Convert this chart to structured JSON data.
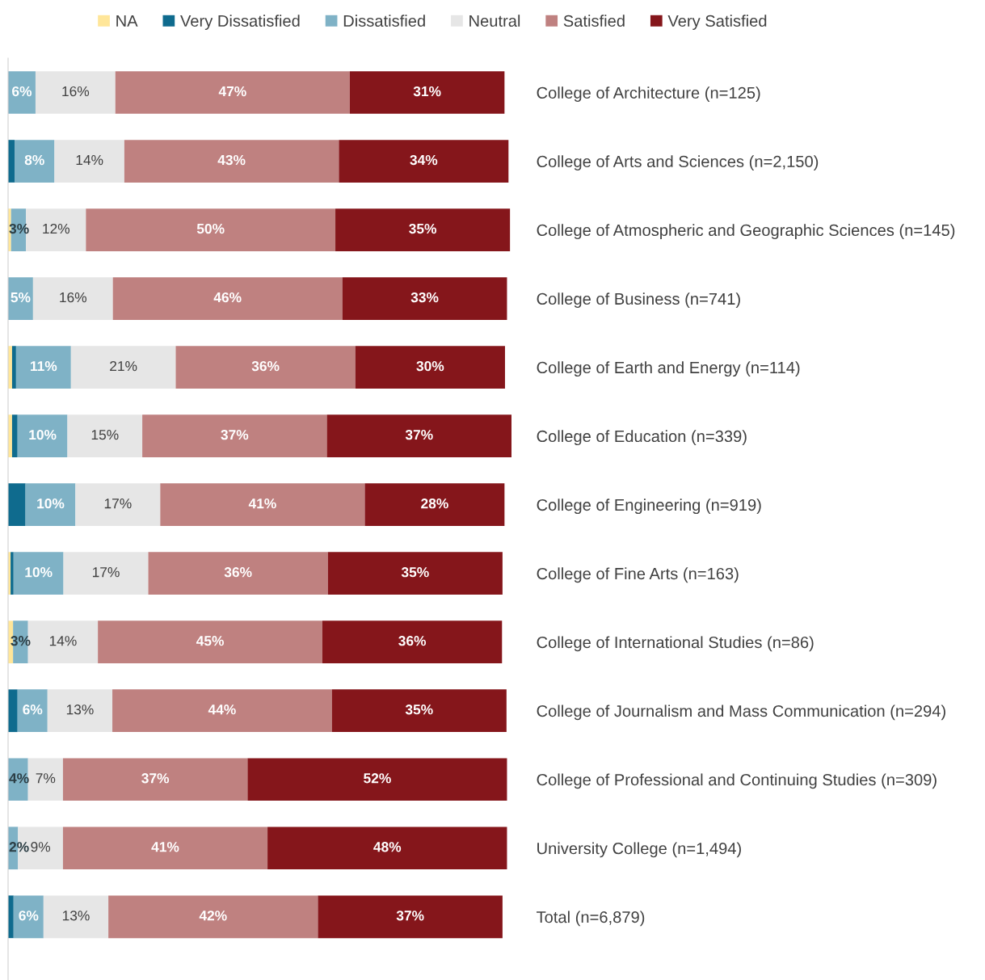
{
  "chart_data": {
    "type": "bar",
    "orientation": "horizontal",
    "stacked": true,
    "legend": "top",
    "grid": false,
    "categories": [
      "College of Architecture (n=125)",
      "College of Arts and Sciences (n=2,150)",
      "College of Atmospheric and Geographic Sciences (n=145)",
      "College of Business (n=741)",
      "College of Earth and Energy (n=114)",
      "College of Education (n=339)",
      "College of Engineering (n=919)",
      "College of Fine Arts (n=163)",
      "College of International Studies (n=86)",
      "College of Journalism and Mass Communication (n=294)",
      "College of Professional and Continuing Studies (n=309)",
      "University College (n=1,494)",
      "Total (n=6,879)"
    ],
    "series": [
      {
        "name": "NA",
        "color": "#ffe699",
        "values": [
          0,
          0,
          0.6,
          0,
          0.8,
          0.8,
          0,
          0.5,
          1,
          0,
          0,
          0,
          0
        ],
        "value_labels": [
          null,
          null,
          null,
          null,
          null,
          null,
          null,
          null,
          null,
          null,
          null,
          null,
          null
        ]
      },
      {
        "name": "Very Dissatisfied",
        "color": "#0f6b8e",
        "values": [
          0,
          1.3,
          0,
          0,
          0.8,
          1.1,
          3.5,
          0.6,
          0,
          1.9,
          0,
          0,
          1.1
        ],
        "value_labels": [
          null,
          null,
          null,
          null,
          null,
          null,
          null,
          null,
          null,
          null,
          null,
          null,
          null
        ]
      },
      {
        "name": "Dissatisfied",
        "color": "#7fb2c6",
        "values": [
          5.5,
          8,
          3,
          5,
          11,
          10,
          10,
          10,
          3,
          6,
          4,
          2,
          6
        ],
        "value_labels": [
          "6%",
          "8%",
          "3%",
          "5%",
          "11%",
          "10%",
          "10%",
          "10%",
          "3%",
          "6%",
          "4%",
          "2%",
          "6%"
        ]
      },
      {
        "name": "Neutral",
        "color": "#e6e6e6",
        "values": [
          16,
          14,
          12,
          16,
          21,
          15,
          17,
          17,
          14,
          13,
          7,
          9,
          13
        ],
        "value_labels": [
          "16%",
          "14%",
          "12%",
          "16%",
          "21%",
          "15%",
          "17%",
          "17%",
          "14%",
          "13%",
          "7%",
          "9%",
          "13%"
        ]
      },
      {
        "name": "Satisfied",
        "color": "#bf8180",
        "values": [
          47,
          43,
          50,
          46,
          36,
          37,
          41,
          36,
          45,
          44,
          37,
          41,
          42
        ],
        "value_labels": [
          "47%",
          "43%",
          "50%",
          "46%",
          "36%",
          "37%",
          "41%",
          "36%",
          "45%",
          "44%",
          "37%",
          "41%",
          "42%"
        ]
      },
      {
        "name": "Very Satisfied",
        "color": "#85161b",
        "values": [
          31,
          34,
          35,
          33,
          30,
          37,
          28,
          35,
          36,
          35,
          52,
          48,
          37
        ],
        "value_labels": [
          "31%",
          "34%",
          "35%",
          "33%",
          "30%",
          "37%",
          "28%",
          "35%",
          "36%",
          "35%",
          "52%",
          "48%",
          "37%"
        ]
      }
    ]
  }
}
